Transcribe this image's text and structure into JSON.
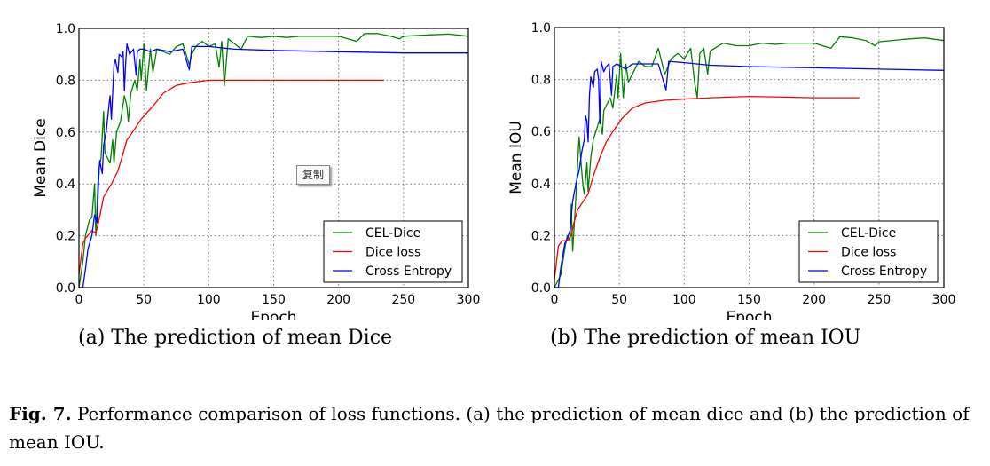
{
  "chart_data": [
    {
      "type": "line",
      "title": "",
      "xlabel": "Epoch",
      "ylabel": "Mean Dice",
      "xlim": [
        0,
        300
      ],
      "ylim": [
        0,
        1.0
      ],
      "xticks": [
        "0",
        "50",
        "100",
        "150",
        "200",
        "250",
        "300"
      ],
      "yticks": [
        "0.0",
        "0.2",
        "0.4",
        "0.6",
        "0.8",
        "1.0"
      ],
      "grid": true,
      "legend_position": "lower-right",
      "series": [
        {
          "name": "CEL-Dice",
          "color": "#008000",
          "x": [
            0,
            3,
            5,
            8,
            10,
            12,
            13,
            15,
            17,
            19,
            20,
            22,
            24,
            26,
            27,
            29,
            32,
            35,
            37,
            38,
            40,
            43,
            45,
            47,
            48,
            50,
            52,
            55,
            57,
            60,
            65,
            70,
            75,
            80,
            85,
            87,
            90,
            95,
            100,
            105,
            108,
            110,
            112,
            115,
            120,
            125,
            130,
            140,
            150,
            160,
            170,
            180,
            200,
            214,
            220,
            230,
            240,
            247,
            250,
            270,
            285,
            300
          ],
          "y": [
            0,
            0.1,
            0.2,
            0.26,
            0.27,
            0.4,
            0.2,
            0.45,
            0.5,
            0.68,
            0.52,
            0.5,
            0.48,
            0.57,
            0.48,
            0.6,
            0.64,
            0.74,
            0.7,
            0.64,
            0.75,
            0.8,
            0.76,
            0.88,
            0.8,
            0.94,
            0.76,
            0.92,
            0.83,
            0.92,
            0.91,
            0.9,
            0.93,
            0.94,
            0.86,
            0.9,
            0.93,
            0.95,
            0.93,
            0.94,
            0.85,
            0.95,
            0.78,
            0.96,
            0.94,
            0.92,
            0.97,
            0.965,
            0.97,
            0.965,
            0.97,
            0.97,
            0.97,
            0.95,
            0.98,
            0.98,
            0.97,
            0.96,
            0.97,
            0.975,
            0.978,
            0.97
          ]
        },
        {
          "name": "Dice loss",
          "color": "#ff0000",
          "x": [
            0,
            3,
            5,
            10,
            13,
            15,
            19,
            25,
            30,
            33,
            37,
            40,
            48,
            57,
            65,
            75,
            85,
            100,
            120,
            150,
            200,
            235
          ],
          "y": [
            0.05,
            0.17,
            0.19,
            0.22,
            0.21,
            0.25,
            0.35,
            0.4,
            0.45,
            0.5,
            0.57,
            0.59,
            0.65,
            0.7,
            0.75,
            0.78,
            0.79,
            0.8,
            0.8,
            0.8,
            0.8,
            0.8
          ]
        },
        {
          "name": "Cross Entropy",
          "color": "#0000ff",
          "x": [
            0,
            3,
            5,
            7,
            10,
            12,
            14,
            15,
            16,
            18,
            19,
            21,
            23,
            24,
            25,
            27,
            28,
            30,
            31,
            33,
            34,
            35,
            36,
            37,
            39,
            42,
            44,
            45,
            47,
            50,
            55,
            60,
            70,
            80,
            85,
            87,
            100,
            120,
            150,
            200,
            250,
            300
          ],
          "y": [
            0,
            0,
            0.07,
            0.15,
            0.2,
            0.28,
            0.25,
            0.4,
            0.49,
            0.44,
            0.55,
            0.6,
            0.7,
            0.74,
            0.65,
            0.86,
            0.88,
            0.83,
            0.9,
            0.89,
            0.91,
            0.76,
            0.87,
            0.94,
            0.9,
            0.92,
            0.82,
            0.91,
            0.92,
            0.92,
            0.91,
            0.92,
            0.91,
            0.92,
            0.84,
            0.93,
            0.93,
            0.92,
            0.915,
            0.91,
            0.905,
            0.905
          ]
        }
      ]
    },
    {
      "type": "line",
      "title": "",
      "xlabel": "Epoch",
      "ylabel": "Mean IOU",
      "xlim": [
        0,
        300
      ],
      "ylim": [
        0,
        1.0
      ],
      "xticks": [
        "0",
        "50",
        "100",
        "150",
        "200",
        "250",
        "300"
      ],
      "yticks": [
        "0.0",
        "0.2",
        "0.4",
        "0.6",
        "0.8",
        "1.0"
      ],
      "grid": true,
      "legend_position": "lower-right",
      "series": [
        {
          "name": "CEL-Dice",
          "color": "#008000",
          "x": [
            0,
            5,
            8,
            10,
            12,
            13,
            14,
            16,
            19,
            21,
            22,
            23,
            25,
            26,
            28,
            30,
            32,
            35,
            37,
            38,
            40,
            43,
            45,
            48,
            49,
            51,
            53,
            55,
            57,
            60,
            65,
            70,
            75,
            80,
            85,
            90,
            95,
            100,
            105,
            108,
            110,
            112,
            115,
            118,
            120,
            130,
            140,
            150,
            160,
            170,
            180,
            190,
            200,
            213,
            220,
            230,
            240,
            247,
            250,
            270,
            285,
            300
          ],
          "y": [
            0,
            0.05,
            0.15,
            0.2,
            0.18,
            0.32,
            0.14,
            0.3,
            0.58,
            0.45,
            0.39,
            0.36,
            0.48,
            0.37,
            0.5,
            0.57,
            0.6,
            0.65,
            0.59,
            0.68,
            0.7,
            0.73,
            0.69,
            0.82,
            0.73,
            0.9,
            0.73,
            0.86,
            0.79,
            0.82,
            0.87,
            0.85,
            0.85,
            0.92,
            0.82,
            0.88,
            0.9,
            0.88,
            0.92,
            0.79,
            0.73,
            0.9,
            0.92,
            0.82,
            0.91,
            0.94,
            0.93,
            0.93,
            0.94,
            0.935,
            0.94,
            0.94,
            0.94,
            0.92,
            0.965,
            0.96,
            0.95,
            0.93,
            0.945,
            0.955,
            0.96,
            0.95
          ]
        },
        {
          "name": "Dice loss",
          "color": "#ff0000",
          "x": [
            0,
            3,
            6,
            10,
            13,
            15,
            18,
            22,
            26,
            30,
            35,
            40,
            45,
            52,
            60,
            70,
            85,
            100,
            120,
            150,
            200,
            235
          ],
          "y": [
            0.03,
            0.16,
            0.18,
            0.18,
            0.2,
            0.25,
            0.3,
            0.33,
            0.36,
            0.43,
            0.5,
            0.56,
            0.6,
            0.65,
            0.69,
            0.71,
            0.72,
            0.725,
            0.73,
            0.735,
            0.73,
            0.73
          ]
        },
        {
          "name": "Cross Entropy",
          "color": "#0000ff",
          "x": [
            0,
            3,
            5,
            8,
            10,
            12,
            14,
            15,
            17,
            19,
            21,
            23,
            24,
            25,
            26,
            27,
            28,
            30,
            31,
            33,
            34,
            35,
            36,
            38,
            40,
            42,
            44,
            45,
            48,
            55,
            60,
            70,
            80,
            86,
            88,
            100,
            120,
            150,
            200,
            250,
            300
          ],
          "y": [
            0,
            0,
            0.08,
            0.17,
            0.19,
            0.22,
            0.33,
            0.36,
            0.41,
            0.45,
            0.52,
            0.57,
            0.66,
            0.64,
            0.56,
            0.74,
            0.81,
            0.77,
            0.83,
            0.84,
            0.8,
            0.63,
            0.87,
            0.83,
            0.85,
            0.86,
            0.74,
            0.85,
            0.86,
            0.84,
            0.86,
            0.86,
            0.86,
            0.76,
            0.87,
            0.865,
            0.855,
            0.85,
            0.845,
            0.84,
            0.835
          ]
        }
      ]
    }
  ],
  "subcaptions": [
    "(a) The prediction of mean Dice",
    "(b) The prediction of mean IOU"
  ],
  "caption": {
    "label": "Fig. 7.",
    "text": " Performance comparison of loss functions. (a) the prediction of mean dice and (b) the prediction of mean IOU."
  },
  "popup": {
    "label": "复制"
  }
}
